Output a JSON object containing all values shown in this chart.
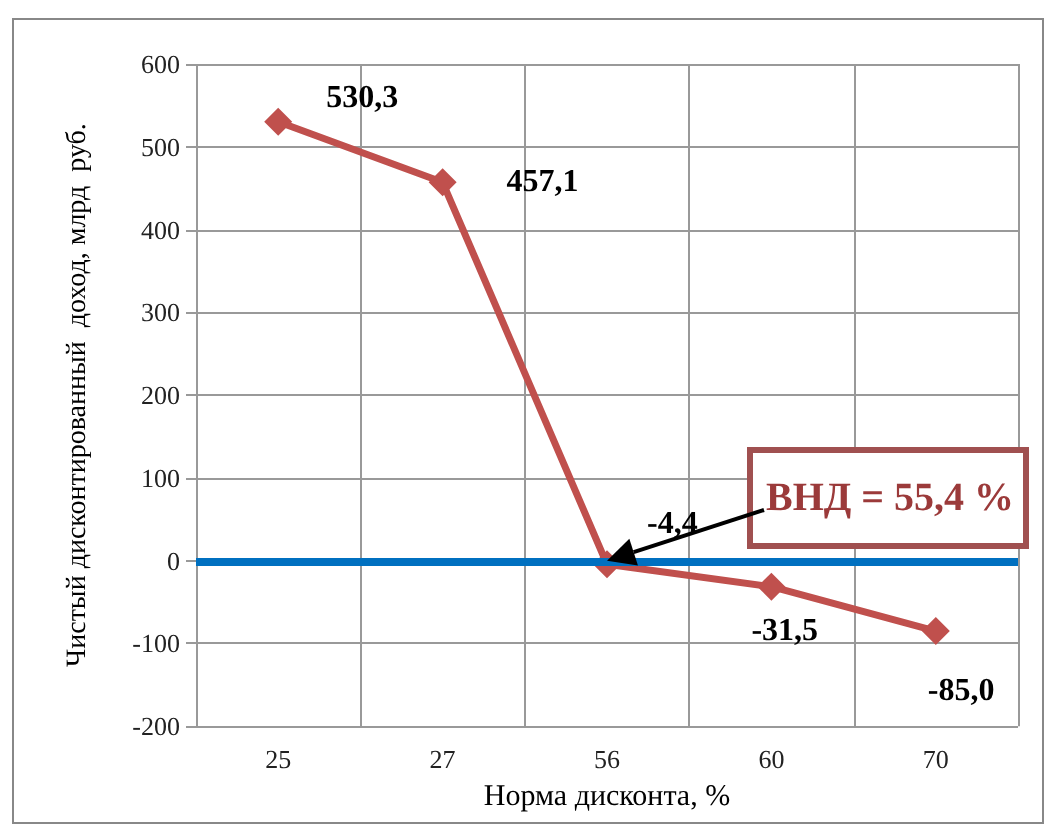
{
  "chart_data": {
    "type": "line",
    "xlabel": "Норма дисконта, %",
    "ylabel": "Чистый дисконтированный  доход, млрд  руб.",
    "categories": [
      "25",
      "27",
      "56",
      "60",
      "70"
    ],
    "series": [
      {
        "color": "#c0504d",
        "values": [
          530.3,
          457.1,
          -4.4,
          -31.5,
          -85.0
        ],
        "value_labels": [
          "530,3",
          "457,1",
          "-4,4",
          "-31,5",
          "-85,0"
        ]
      }
    ],
    "ylim": [
      -200,
      600
    ],
    "yticks": [
      -200,
      -100,
      0,
      100,
      200,
      300,
      400,
      500,
      600
    ],
    "grid": true,
    "marker": "diamond",
    "line_style": "solid",
    "ref_lines": [
      {
        "axis": "y",
        "value": 0,
        "color": "#0070c0"
      }
    ],
    "annotations": [
      {
        "text": "ВНД = 55,4 %",
        "y": 0
      }
    ]
  }
}
